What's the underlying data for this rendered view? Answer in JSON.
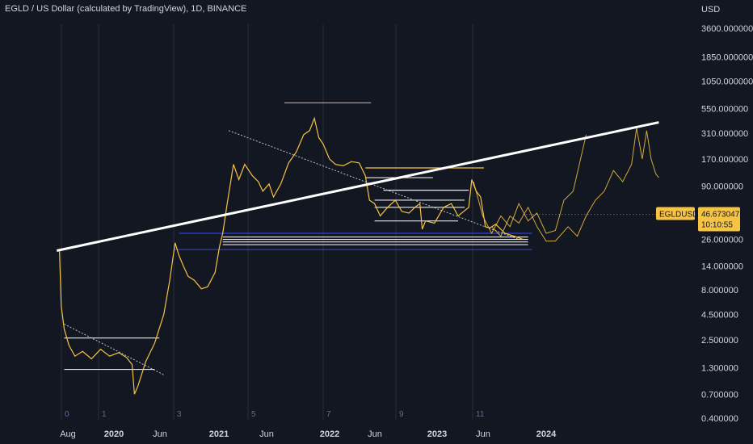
{
  "header": {
    "title": "EGLD / US Dollar (calculated by TradingView), 1D, BINANCE"
  },
  "colors": {
    "background": "#131722",
    "price": "#f6c343",
    "trend": "#ffffff",
    "support": "#2f3fd8",
    "resistance": "#e0a060",
    "cycle_line": "#2a2e39"
  },
  "chart_data": {
    "type": "line",
    "title": "",
    "y_unit": "USD",
    "y_scale": "log",
    "ylim": [
      0.4,
      3600
    ],
    "y_ticks": [
      "3600.000000",
      "1850.000000",
      "1050.000000",
      "550.000000",
      "310.000000",
      "170.000000",
      "90.000000",
      "26.000000",
      "14.000000",
      "8.000000",
      "4.500000",
      "2.500000",
      "1.300000",
      "0.700000",
      "0.400000"
    ],
    "x_ticks": [
      {
        "label": "Aug",
        "bold": false
      },
      {
        "label": "2020",
        "bold": true
      },
      {
        "label": "Jun",
        "bold": false
      },
      {
        "label": "2021",
        "bold": true
      },
      {
        "label": "Jun",
        "bold": false
      },
      {
        "label": "2022",
        "bold": true
      },
      {
        "label": "Jun",
        "bold": false
      },
      {
        "label": "2023",
        "bold": true
      },
      {
        "label": "Jun",
        "bold": false
      },
      {
        "label": "2024",
        "bold": true
      }
    ],
    "cycle_labels": [
      "0",
      "1",
      "3",
      "5",
      "7",
      "9",
      "11"
    ],
    "last_price": {
      "symbol": "EGLDUSD",
      "value": "46.673047",
      "countdown": "10:10:55"
    },
    "series": [
      {
        "values": [
          [
            "2019-07-04",
            20
          ],
          [
            "2019-07-10",
            5.5
          ],
          [
            "2019-07-20",
            3.2
          ],
          [
            "2019-08-05",
            2.2
          ],
          [
            "2019-08-25",
            1.7
          ],
          [
            "2019-09-20",
            1.9
          ],
          [
            "2019-10-20",
            1.6
          ],
          [
            "2019-11-20",
            2.0
          ],
          [
            "2019-12-20",
            1.7
          ],
          [
            "2020-01-20",
            1.85
          ],
          [
            "2020-02-15",
            1.65
          ],
          [
            "2020-03-05",
            1.4
          ],
          [
            "2020-03-13",
            0.7
          ],
          [
            "2020-03-25",
            0.85
          ],
          [
            "2020-04-20",
            1.5
          ],
          [
            "2020-05-20",
            2.3
          ],
          [
            "2020-06-20",
            4.5
          ],
          [
            "2020-07-10",
            10
          ],
          [
            "2020-07-28",
            24
          ],
          [
            "2020-08-10",
            18
          ],
          [
            "2020-08-25",
            14
          ],
          [
            "2020-09-10",
            11
          ],
          [
            "2020-10-01",
            10
          ],
          [
            "2020-10-25",
            8.2
          ],
          [
            "2020-11-15",
            8.6
          ],
          [
            "2020-12-10",
            12
          ],
          [
            "2020-12-25",
            22
          ],
          [
            "2021-01-05",
            30
          ],
          [
            "2021-01-20",
            60
          ],
          [
            "2021-02-10",
            150
          ],
          [
            "2021-02-28",
            105
          ],
          [
            "2021-03-20",
            150
          ],
          [
            "2021-04-15",
            115
          ],
          [
            "2021-05-05",
            100
          ],
          [
            "2021-05-20",
            80
          ],
          [
            "2021-06-10",
            95
          ],
          [
            "2021-06-25",
            70
          ],
          [
            "2021-07-20",
            95
          ],
          [
            "2021-08-15",
            155
          ],
          [
            "2021-09-10",
            200
          ],
          [
            "2021-10-05",
            300
          ],
          [
            "2021-10-25",
            330
          ],
          [
            "2021-11-10",
            440
          ],
          [
            "2021-11-25",
            280
          ],
          [
            "2021-12-10",
            240
          ],
          [
            "2021-12-31",
            170
          ],
          [
            "2022-01-20",
            150
          ],
          [
            "2022-02-15",
            145
          ],
          [
            "2022-03-15",
            160
          ],
          [
            "2022-04-10",
            155
          ],
          [
            "2022-05-01",
            115
          ],
          [
            "2022-05-15",
            65
          ],
          [
            "2022-06-01",
            60
          ],
          [
            "2022-06-20",
            45
          ],
          [
            "2022-07-15",
            55
          ],
          [
            "2022-08-10",
            65
          ],
          [
            "2022-09-01",
            50
          ],
          [
            "2022-09-25",
            48
          ],
          [
            "2022-10-15",
            55
          ],
          [
            "2022-11-01",
            60
          ],
          [
            "2022-11-09",
            33
          ],
          [
            "2022-11-20",
            40
          ],
          [
            "2022-12-20",
            38
          ],
          [
            "2023-01-20",
            55
          ],
          [
            "2023-02-15",
            60
          ],
          [
            "2023-03-10",
            45
          ],
          [
            "2023-04-15",
            55
          ],
          [
            "2023-04-25",
            105
          ],
          [
            "2023-05-10",
            80
          ],
          [
            "2023-05-25",
            70
          ],
          [
            "2023-06-10",
            35
          ],
          [
            "2023-06-25",
            34
          ],
          [
            "2023-07-15",
            37
          ],
          [
            "2023-08-15",
            30
          ],
          [
            "2023-09-15",
            28
          ],
          [
            "2023-10-15",
            26
          ]
        ]
      }
    ],
    "overlay_series": [
      {
        "values": [
          [
            "2023-05-01",
            100
          ],
          [
            "2023-06-01",
            45
          ],
          [
            "2023-07-01",
            30
          ],
          [
            "2023-08-01",
            45
          ],
          [
            "2023-09-01",
            35
          ],
          [
            "2023-10-01",
            60
          ],
          [
            "2023-11-01",
            40
          ],
          [
            "2023-12-01",
            48
          ],
          [
            "2024-01-01",
            30
          ],
          [
            "2024-02-01",
            32
          ],
          [
            "2024-03-01",
            65
          ],
          [
            "2024-04-01",
            80
          ],
          [
            "2024-05-15",
            300
          ]
        ]
      },
      {
        "values": [
          [
            "2023-07-01",
            35
          ],
          [
            "2023-08-01",
            28
          ],
          [
            "2023-09-01",
            45
          ],
          [
            "2023-10-01",
            38
          ],
          [
            "2023-11-01",
            55
          ],
          [
            "2023-12-01",
            35
          ],
          [
            "2024-01-01",
            25
          ],
          [
            "2024-02-01",
            25
          ],
          [
            "2024-03-15",
            35
          ],
          [
            "2024-04-15",
            28
          ],
          [
            "2024-05-15",
            45
          ],
          [
            "2024-06-15",
            65
          ],
          [
            "2024-07-15",
            80
          ],
          [
            "2024-08-15",
            130
          ],
          [
            "2024-09-15",
            100
          ],
          [
            "2024-10-15",
            150
          ],
          [
            "2024-11-01",
            350
          ],
          [
            "2024-11-20",
            170
          ],
          [
            "2024-12-05",
            330
          ],
          [
            "2024-12-20",
            170
          ],
          [
            "2025-01-05",
            120
          ],
          [
            "2025-01-15",
            110
          ]
        ]
      }
    ],
    "annotations": {
      "trend_line": [
        [
          "2019-06-25",
          20
        ],
        [
          "2025-01-15",
          400
        ]
      ],
      "diag_lines": [
        [
          [
            "2019-07-20",
            3.6
          ],
          [
            "2020-06-20",
            1.1
          ]
        ],
        [
          [
            "2021-01-25",
            330
          ],
          [
            "2023-10-01",
            26
          ]
        ]
      ],
      "horizontal_lines": [
        {
          "from": "2019-07-20",
          "to": "2020-06-05",
          "y": 2.6,
          "color": "white"
        },
        {
          "from": "2019-07-20",
          "to": "2020-05-20",
          "y": 1.25,
          "color": "white"
        },
        {
          "from": "2021-08-01",
          "to": "2022-05-20",
          "y": 630,
          "color": "resistance"
        },
        {
          "from": "2022-05-01",
          "to": "2023-06-05",
          "y": 138,
          "color": "yellow"
        },
        {
          "from": "2022-05-01",
          "to": "2022-12-15",
          "y": 110,
          "color": "white"
        },
        {
          "from": "2022-07-01",
          "to": "2023-04-15",
          "y": 82,
          "color": "white"
        },
        {
          "from": "2022-06-01",
          "to": "2023-04-01",
          "y": 65,
          "color": "white"
        },
        {
          "from": "2022-06-01",
          "to": "2023-04-01",
          "y": 55,
          "color": "white"
        },
        {
          "from": "2022-06-01",
          "to": "2023-03-10",
          "y": 40,
          "color": "white"
        },
        {
          "from": "2020-08-10",
          "to": "2023-11-15",
          "y": 30,
          "color": "support"
        },
        {
          "from": "2021-01-05",
          "to": "2023-11-01",
          "y": 27.5,
          "color": "white"
        },
        {
          "from": "2021-01-05",
          "to": "2023-11-01",
          "y": 26,
          "color": "white"
        },
        {
          "from": "2021-01-05",
          "to": "2023-11-01",
          "y": 24.5,
          "color": "white"
        },
        {
          "from": "2021-01-05",
          "to": "2023-11-01",
          "y": 23,
          "color": "white"
        },
        {
          "from": "2020-07-25",
          "to": "2023-11-15",
          "y": 20.5,
          "color": "support"
        }
      ]
    }
  }
}
